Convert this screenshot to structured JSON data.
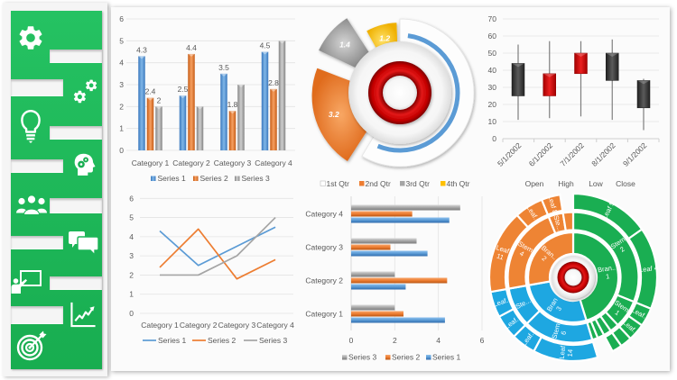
{
  "sidebar": {
    "items": [
      {
        "id": "settings",
        "icon": "gear-icon"
      },
      {
        "id": "automation",
        "icon": "gears-icon"
      },
      {
        "id": "ideas",
        "icon": "lightbulb-icon"
      },
      {
        "id": "thinking",
        "icon": "head-gears-icon"
      },
      {
        "id": "team",
        "icon": "people-icon"
      },
      {
        "id": "discussion",
        "icon": "chat-bubbles-icon"
      },
      {
        "id": "presentation",
        "icon": "presentation-icon"
      },
      {
        "id": "growth",
        "icon": "growth-chart-icon"
      },
      {
        "id": "goals",
        "icon": "target-icon"
      }
    ]
  },
  "colors": {
    "sidebar_green": "#1db558",
    "series1": "#5b9bd5",
    "series2": "#ed7d31",
    "series3": "#a5a5a5",
    "series4": "#ffc000",
    "gauge_red": "#c00000",
    "candle_up": "#d00000",
    "candle_down": "#3a3a3a",
    "sun_green": "#1aae52",
    "sun_blue": "#1ea7e1",
    "sun_orange": "#ee8434",
    "text": "#595959",
    "grid": "#e3e3e3"
  },
  "chart_data": [
    {
      "type": "bar",
      "orientation": "vertical",
      "title": "",
      "xlabel": "",
      "ylabel": "",
      "categories": [
        "Category 1",
        "Category 2",
        "Category 3",
        "Category 4"
      ],
      "series": [
        {
          "name": "Series 1",
          "values": [
            4.3,
            2.5,
            3.5,
            4.5
          ],
          "data_labels": [
            "4.3",
            "2.5",
            "3.5",
            "4.5"
          ]
        },
        {
          "name": "Series 2",
          "values": [
            2.4,
            4.4,
            1.8,
            2.8
          ],
          "data_labels": [
            "2.4",
            "4.4",
            "1.8",
            "2.8"
          ]
        },
        {
          "name": "Series 3",
          "values": [
            2,
            2,
            3,
            5
          ],
          "data_labels": [
            "2",
            null,
            null,
            null
          ]
        }
      ],
      "ylim": [
        0,
        6
      ],
      "yticks": [
        "0",
        "1",
        "2",
        "3",
        "4",
        "5",
        "6"
      ],
      "grid": true,
      "legend": "bottom"
    },
    {
      "type": "pie",
      "variant": "exploded doughnut with gauge center",
      "title": "",
      "categories": [
        "1st Qtr",
        "2nd Qtr",
        "3rd Qtr",
        "4th Qtr"
      ],
      "values": [
        8.2,
        3.2,
        1.4,
        1.2
      ],
      "data_labels": [
        null,
        "3.2",
        "1.4",
        "1.2"
      ],
      "progress_arc": 0.54,
      "legend": "bottom"
    },
    {
      "type": "candlestick",
      "title": "",
      "categories": [
        "5/1/2002",
        "6/1/2002",
        "7/1/2002",
        "8/1/2002",
        "9/1/2002"
      ],
      "open": [
        44,
        25,
        38,
        50,
        34
      ],
      "high": [
        55,
        57,
        57,
        58,
        35
      ],
      "low": [
        11,
        12,
        13,
        11,
        5
      ],
      "close": [
        25,
        38,
        50,
        34,
        18
      ],
      "ylim": [
        0,
        70
      ],
      "yticks": [
        "0",
        "10",
        "20",
        "30",
        "40",
        "50",
        "60",
        "70"
      ],
      "grid": true,
      "legend_entries": [
        "Open",
        "High",
        "Low",
        "Close"
      ],
      "legend": "bottom"
    },
    {
      "type": "line",
      "title": "",
      "categories": [
        "Category 1",
        "Category 2",
        "Category 3",
        "Category 4"
      ],
      "series": [
        {
          "name": "Series 1",
          "values": [
            4.3,
            2.5,
            3.5,
            4.5
          ]
        },
        {
          "name": "Series 2",
          "values": [
            2.4,
            4.4,
            1.8,
            2.8
          ]
        },
        {
          "name": "Series 3",
          "values": [
            2,
            2,
            3,
            5
          ]
        }
      ],
      "ylim": [
        0,
        6
      ],
      "yticks": [
        "0",
        "1",
        "2",
        "3",
        "4",
        "5",
        "6"
      ],
      "grid": true,
      "legend": "bottom"
    },
    {
      "type": "bar",
      "orientation": "horizontal",
      "title": "",
      "categories": [
        "Category 1",
        "Category 2",
        "Category 3",
        "Category 4"
      ],
      "series": [
        {
          "name": "Series 1",
          "values": [
            4.3,
            2.5,
            3.5,
            4.5
          ]
        },
        {
          "name": "Series 2",
          "values": [
            2.4,
            4.4,
            1.8,
            2.8
          ]
        },
        {
          "name": "Series 3",
          "values": [
            2,
            2,
            3,
            5
          ]
        }
      ],
      "xlim": [
        0,
        6
      ],
      "xticks": [
        "0",
        "2",
        "4",
        "6"
      ],
      "grid": true,
      "legend": "bottom",
      "legend_order": [
        "Series 3",
        "Series 2",
        "Series 1"
      ]
    },
    {
      "type": "pie",
      "variant": "sunburst",
      "title": "",
      "value_note": "relative segment sizes estimated from the rendered arcs",
      "branches": [
        {
          "label": [
            "Bran..",
            "1"
          ],
          "color": "green",
          "stems": [
            {
              "label": [
                "Stem",
                "2"
              ],
              "leaves": [
                {
                  "label": [
                    "Leaf 5"
                  ],
                  "value": 55
                },
                {
                  "label": [
                    "Leaf 4"
                  ],
                  "value": 57
                }
              ]
            },
            {
              "label": [
                "Stem",
                "1"
              ],
              "leaves": [
                {
                  "label": [
                    "Leaf.."
                  ],
                  "value": 13
                },
                {
                  "label": [
                    "Leaf.."
                  ],
                  "value": 12
                }
              ]
            },
            {
              "label": [],
              "leaves": [
                {
                  "label": [],
                  "value": 8
                }
              ]
            },
            {
              "label": [],
              "leaves": [
                {
                  "label": [],
                  "value": 7
                }
              ]
            },
            {
              "label": [],
              "value": 6,
              "leaves": []
            },
            {
              "label": [],
              "value": 5,
              "leaves": []
            }
          ]
        },
        {
          "label": [
            "Bran",
            "3"
          ],
          "color": "blue",
          "stems": [
            {
              "label": [
                "Stem",
                "6"
              ],
              "leaves": [
                {
                  "label": [
                    "Leaf",
                    "14"
                  ],
                  "value": 45
                },
                {
                  "label": [
                    "Leaf.."
                  ],
                  "value": 17
                }
              ]
            },
            {
              "label": [
                "Ste..."
              ],
              "leaves": [
                {
                  "label": [
                    "Leaf.."
                  ],
                  "value": 17
                },
                {
                  "label": [
                    "Leaf.."
                  ],
                  "value": 18
                }
              ]
            }
          ]
        },
        {
          "label": [
            "Bran..",
            "2"
          ],
          "color": "orange",
          "stems": [
            {
              "label": [
                "Stem",
                "4"
              ],
              "leaves": [
                {
                  "label": [
                    "Leaf",
                    "11"
                  ],
                  "value": 58
                },
                {
                  "label": [
                    "Leaf.."
                  ],
                  "value": 20
                }
              ]
            },
            {
              "label": [
                "Ste..."
              ],
              "leaves": [
                {
                  "label": [
                    "Leaf 8"
                  ],
                  "value": 13
                }
              ]
            },
            {
              "label": [],
              "value": 9,
              "leaves": []
            }
          ]
        }
      ]
    }
  ]
}
